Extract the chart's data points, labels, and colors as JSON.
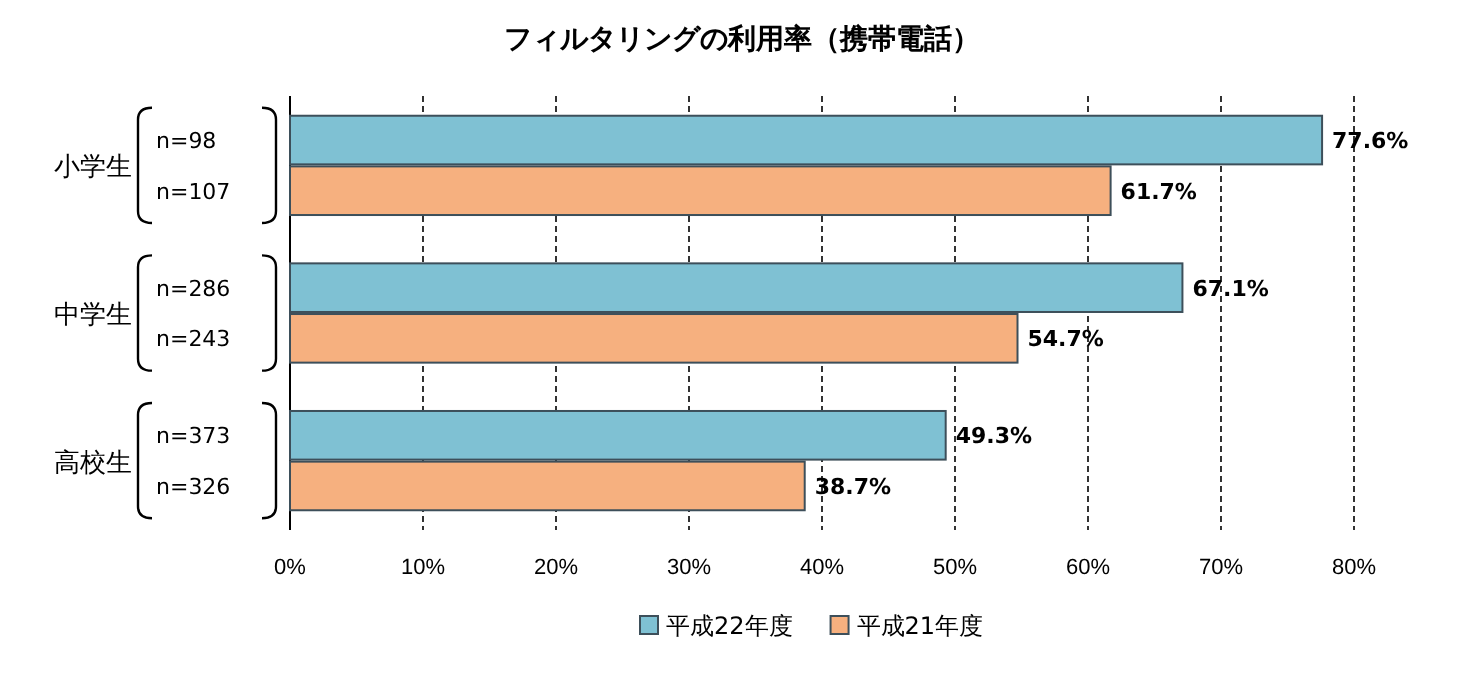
{
  "chart_data": {
    "type": "bar",
    "orientation": "horizontal",
    "title": "フィルタリングの利用率（携帯電話）",
    "categories": [
      "小学生",
      "中学生",
      "高校生"
    ],
    "series": [
      {
        "name": "平成22年度",
        "color": "#7fc1d3",
        "values": [
          77.6,
          67.1,
          49.3
        ],
        "value_labels": [
          "77.6%",
          "67.1%",
          "49.3%"
        ]
      },
      {
        "name": "平成21年度",
        "color": "#f6b07f",
        "values": [
          61.7,
          54.7,
          38.7
        ],
        "value_labels": [
          "61.7%",
          "54.7%",
          "38.7%"
        ]
      }
    ],
    "annotations": [
      "n=98",
      "n=107",
      "n=286",
      "n=243",
      "n=373",
      "n=326"
    ],
    "xlim": [
      0,
      80
    ],
    "xticks": [
      {
        "value": 0,
        "label": "0%"
      },
      {
        "value": 10,
        "label": "10%"
      },
      {
        "value": 20,
        "label": "20%"
      },
      {
        "value": 30,
        "label": "30%"
      },
      {
        "value": 40,
        "label": "40%"
      },
      {
        "value": 50,
        "label": "50%"
      },
      {
        "value": 60,
        "label": "60%"
      },
      {
        "value": 70,
        "label": "70%"
      },
      {
        "value": 80,
        "label": "80%"
      }
    ],
    "grid": "x",
    "legend": "bottom"
  }
}
